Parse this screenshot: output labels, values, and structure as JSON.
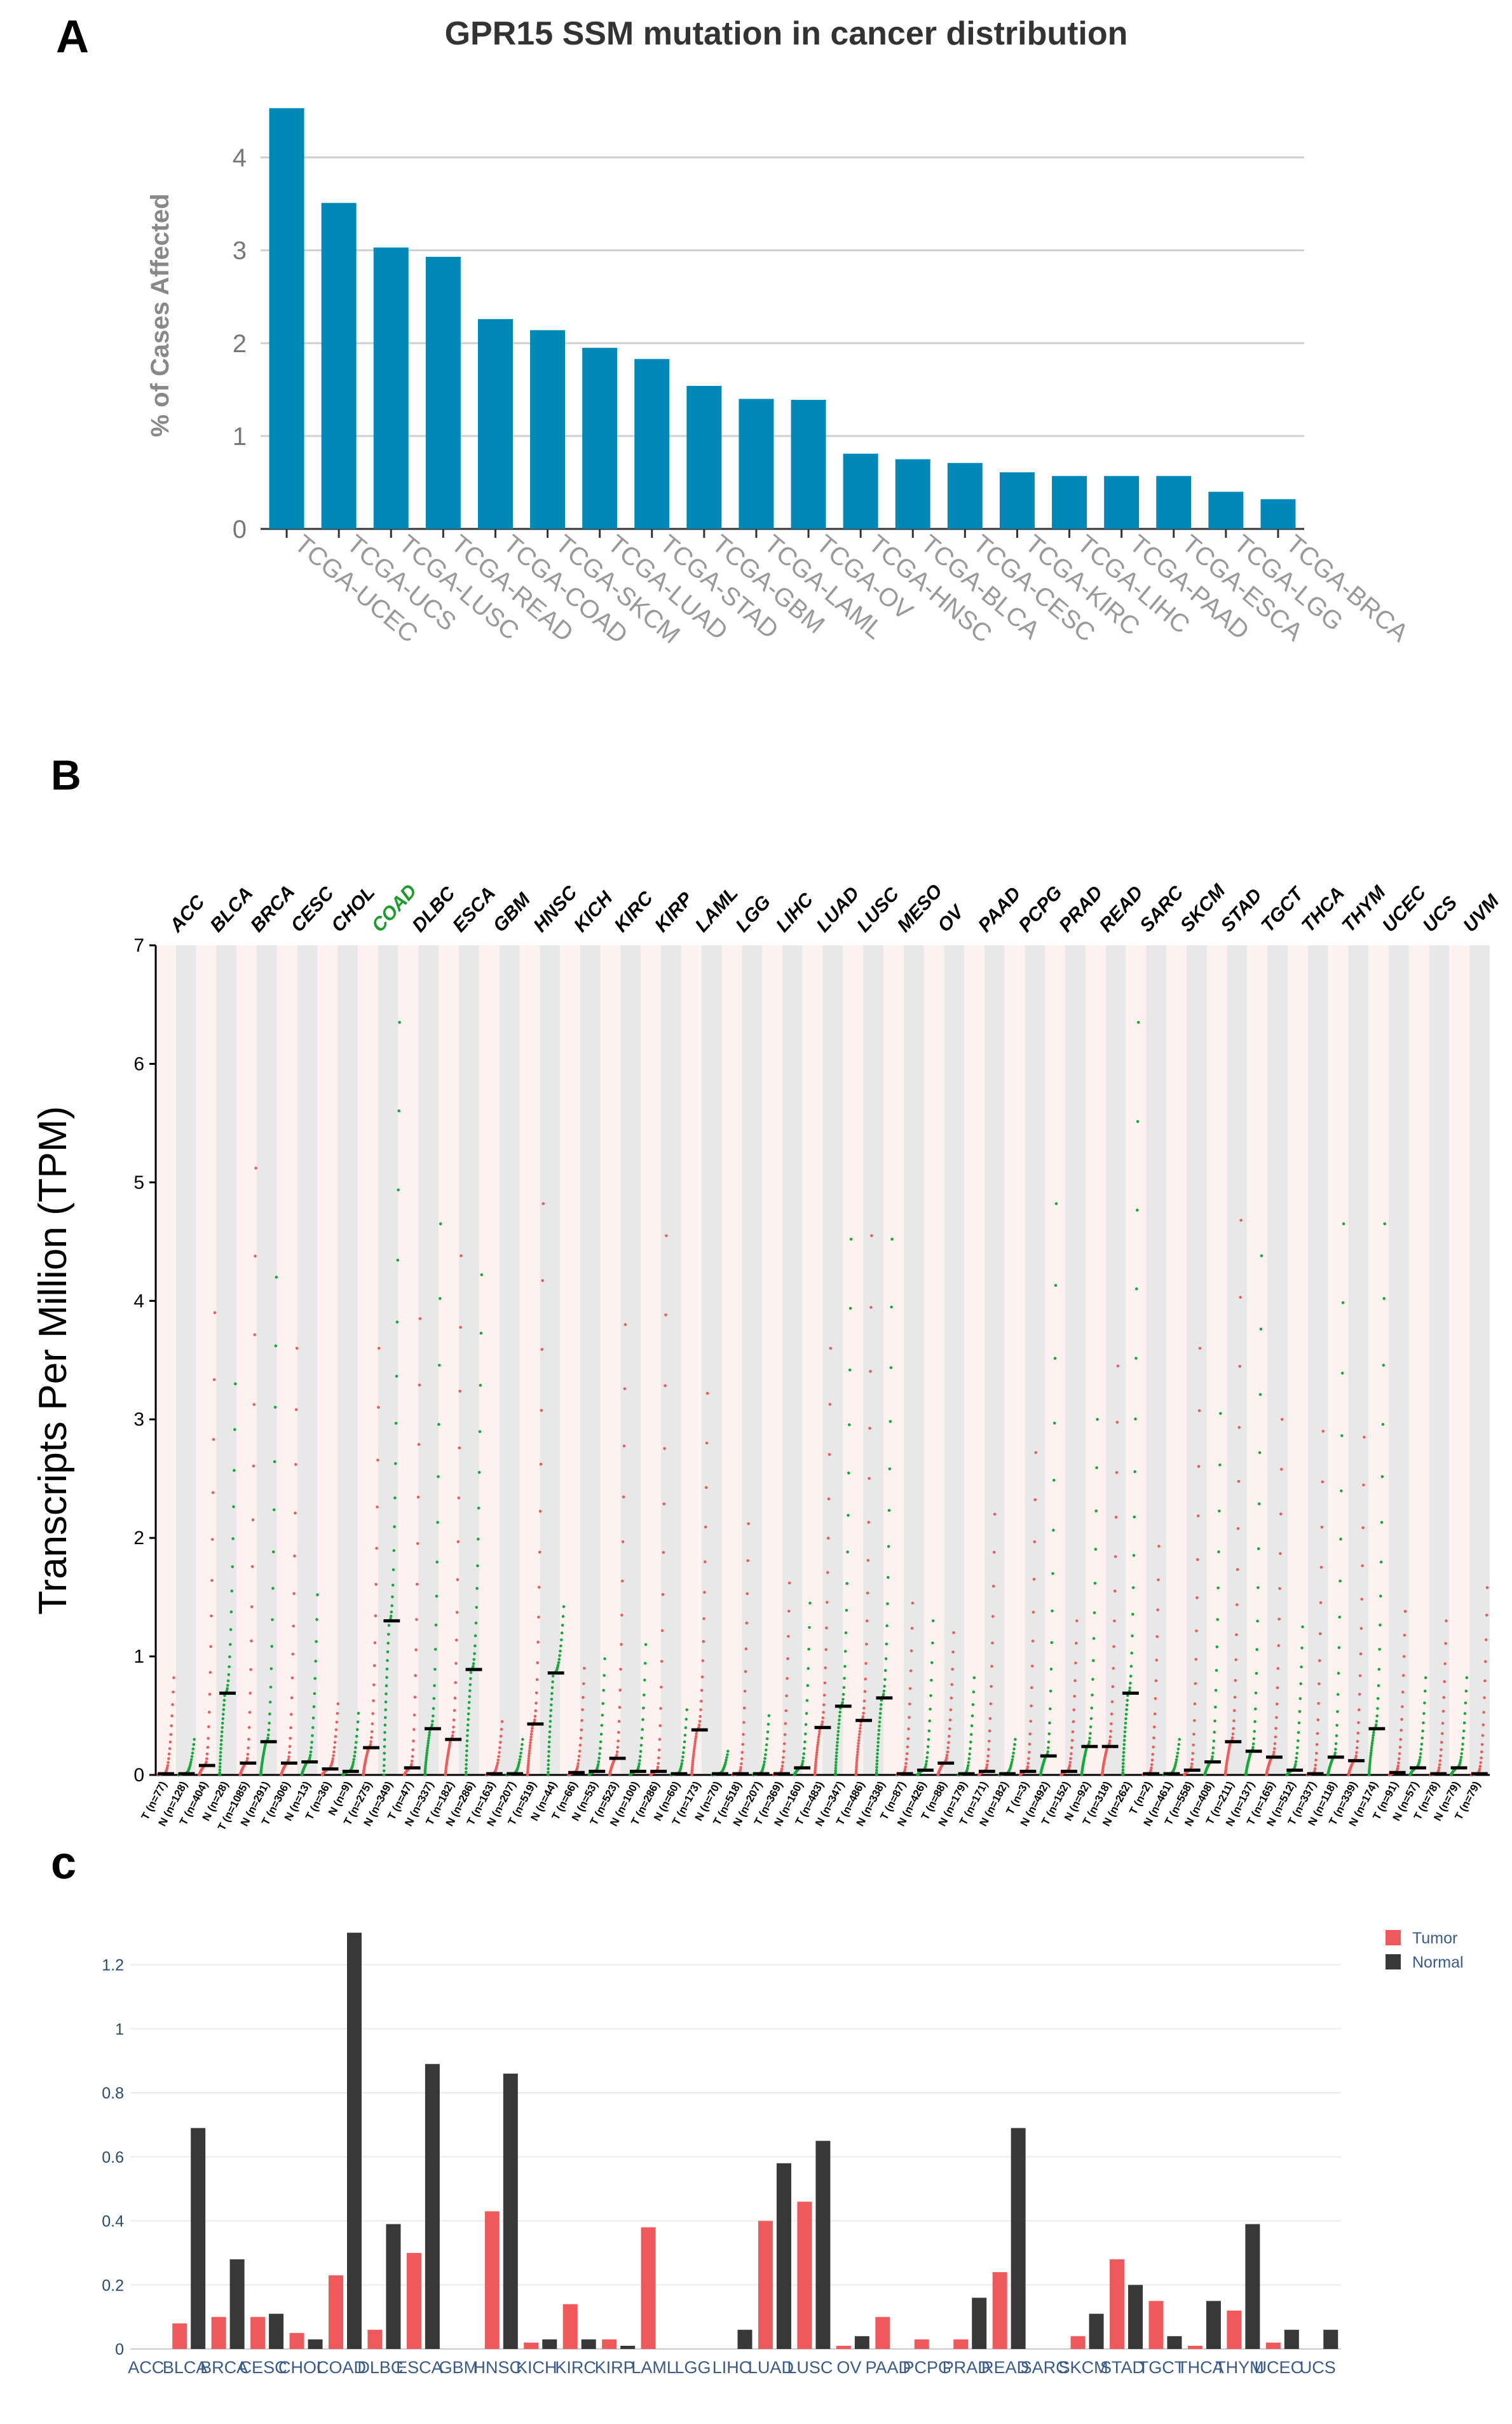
{
  "panel_labels": {
    "a": "A",
    "b": "B",
    "c": "c"
  },
  "chart_data": [
    {
      "id": "A",
      "type": "bar",
      "title": "GPR15 SSM mutation in cancer distribution",
      "ylabel": "% of Cases Affected",
      "xlabel": "",
      "ylim": [
        0,
        4.6
      ],
      "yticks": [
        0,
        1,
        2,
        3,
        4
      ],
      "grid": true,
      "bar_color": "#0088b8",
      "categories": [
        "TCGA-UCEC",
        "TCGA-UCS",
        "TCGA-LUSC",
        "TCGA-READ",
        "TCGA-COAD",
        "TCGA-SKCM",
        "TCGA-LUAD",
        "TCGA-STAD",
        "TCGA-GBM",
        "TCGA-LAML",
        "TCGA-OV",
        "TCGA-HNSC",
        "TCGA-BLCA",
        "TCGA-CESC",
        "TCGA-KIRC",
        "TCGA-LIHC",
        "TCGA-PAAD",
        "TCGA-ESCA",
        "TCGA-LGG",
        "TCGA-BRCA"
      ],
      "values": [
        4.53,
        3.51,
        3.03,
        2.93,
        2.26,
        2.14,
        1.95,
        1.83,
        1.54,
        1.4,
        1.39,
        0.81,
        0.75,
        0.71,
        0.61,
        0.57,
        0.57,
        0.57,
        0.4,
        0.32
      ]
    },
    {
      "id": "B",
      "type": "scatter",
      "ylabel": "Transcripts Per Million (TPM)",
      "ylim": [
        0,
        7
      ],
      "yticks": [
        0,
        1,
        2,
        3,
        4,
        5,
        6,
        7
      ],
      "tumor_color": "#ef5a5a",
      "normal_color": "#17a83a",
      "highlight_color": "#1a9b2a",
      "highlight": "COAD",
      "cancers": [
        "ACC",
        "BLCA",
        "BRCA",
        "CESC",
        "CHOL",
        "COAD",
        "DLBC",
        "ESCA",
        "GBM",
        "HNSC",
        "KICH",
        "KIRC",
        "KIRP",
        "LAML",
        "LGG",
        "LIHC",
        "LUAD",
        "LUSC",
        "MESO",
        "OV",
        "PAAD",
        "PCPG",
        "PRAD",
        "READ",
        "SARC",
        "SKCM",
        "STAD",
        "TGCT",
        "THCA",
        "THYM",
        "UCEC",
        "UCS",
        "UVM"
      ],
      "groups": [
        {
          "label": "T (n=77)",
          "kind": "T",
          "median": 0.01,
          "max": 0.82
        },
        {
          "label": "N (n=128)",
          "kind": "N",
          "median": 0.01,
          "max": 0.3
        },
        {
          "label": "T (n=404)",
          "kind": "T",
          "median": 0.08,
          "max": 3.9
        },
        {
          "label": "N (n=28)",
          "kind": "N",
          "median": 0.69,
          "max": 3.3
        },
        {
          "label": "T (n=1085)",
          "kind": "T",
          "median": 0.1,
          "max": 5.12
        },
        {
          "label": "N (n=291)",
          "kind": "N",
          "median": 0.28,
          "max": 4.2
        },
        {
          "label": "T (n=306)",
          "kind": "T",
          "median": 0.1,
          "max": 3.6
        },
        {
          "label": "N (n=13)",
          "kind": "N",
          "median": 0.11,
          "max": 1.52
        },
        {
          "label": "T (n=36)",
          "kind": "T",
          "median": 0.05,
          "max": 0.6
        },
        {
          "label": "N (n=9)",
          "kind": "N",
          "median": 0.03,
          "max": 0.52
        },
        {
          "label": "T (n=275)",
          "kind": "T",
          "median": 0.23,
          "max": 3.6
        },
        {
          "label": "N (n=349)",
          "kind": "N",
          "median": 1.3,
          "max": 6.35
        },
        {
          "label": "T (n=47)",
          "kind": "T",
          "median": 0.06,
          "max": 3.85
        },
        {
          "label": "N (n=337)",
          "kind": "N",
          "median": 0.39,
          "max": 4.65
        },
        {
          "label": "T (n=182)",
          "kind": "T",
          "median": 0.3,
          "max": 4.38
        },
        {
          "label": "N (n=286)",
          "kind": "N",
          "median": 0.89,
          "max": 4.22
        },
        {
          "label": "T (n=163)",
          "kind": "T",
          "median": 0.01,
          "max": 0.45
        },
        {
          "label": "N (n=207)",
          "kind": "N",
          "median": 0.01,
          "max": 0.3
        },
        {
          "label": "T (n=519)",
          "kind": "T",
          "median": 0.43,
          "max": 4.82
        },
        {
          "label": "N (n=44)",
          "kind": "N",
          "median": 0.86,
          "max": 1.42
        },
        {
          "label": "T (n=66)",
          "kind": "T",
          "median": 0.02,
          "max": 0.9
        },
        {
          "label": "N (n=53)",
          "kind": "N",
          "median": 0.03,
          "max": 0.98
        },
        {
          "label": "T (n=523)",
          "kind": "T",
          "median": 0.14,
          "max": 3.8
        },
        {
          "label": "N (n=100)",
          "kind": "N",
          "median": 0.03,
          "max": 1.1
        },
        {
          "label": "T (n=286)",
          "kind": "T",
          "median": 0.03,
          "max": 4.55
        },
        {
          "label": "N (n=60)",
          "kind": "N",
          "median": 0.01,
          "max": 0.55
        },
        {
          "label": "T (n=173)",
          "kind": "T",
          "median": 0.38,
          "max": 3.22
        },
        {
          "label": "N (n=70)",
          "kind": "N",
          "median": 0.01,
          "max": 0.2
        },
        {
          "label": "T (n=518)",
          "kind": "T",
          "median": 0.01,
          "max": 2.12
        },
        {
          "label": "N (n=207)",
          "kind": "N",
          "median": 0.01,
          "max": 0.5
        },
        {
          "label": "T (n=369)",
          "kind": "T",
          "median": 0.01,
          "max": 1.62
        },
        {
          "label": "N (n=160)",
          "kind": "N",
          "median": 0.06,
          "max": 1.45
        },
        {
          "label": "T (n=483)",
          "kind": "T",
          "median": 0.4,
          "max": 3.6
        },
        {
          "label": "N (n=347)",
          "kind": "N",
          "median": 0.58,
          "max": 4.52
        },
        {
          "label": "T (n=486)",
          "kind": "T",
          "median": 0.46,
          "max": 4.55
        },
        {
          "label": "N (n=338)",
          "kind": "N",
          "median": 0.65,
          "max": 4.52
        },
        {
          "label": "T (n=87)",
          "kind": "T",
          "median": 0.01,
          "max": 1.45
        },
        {
          "label": "N (n=426)",
          "kind": "N",
          "median": 0.04,
          "max": 1.3
        },
        {
          "label": "T (n=88)",
          "kind": "T",
          "median": 0.1,
          "max": 1.2
        },
        {
          "label": "N (n=179)",
          "kind": "N",
          "median": 0.01,
          "max": 0.82
        },
        {
          "label": "T (n=171)",
          "kind": "T",
          "median": 0.03,
          "max": 2.2
        },
        {
          "label": "N (n=182)",
          "kind": "N",
          "median": 0.01,
          "max": 0.3
        },
        {
          "label": "T (n=3)",
          "kind": "T",
          "median": 0.03,
          "max": 2.72
        },
        {
          "label": "N (n=492)",
          "kind": "N",
          "median": 0.16,
          "max": 4.82
        },
        {
          "label": "T (n=152)",
          "kind": "T",
          "median": 0.03,
          "max": 1.3
        },
        {
          "label": "N (n=92)",
          "kind": "N",
          "median": 0.24,
          "max": 3.0
        },
        {
          "label": "T (n=318)",
          "kind": "T",
          "median": 0.24,
          "max": 3.45
        },
        {
          "label": "N (n=262)",
          "kind": "N",
          "median": 0.69,
          "max": 6.35
        },
        {
          "label": "T (n=2)",
          "kind": "T",
          "median": 0.01,
          "max": 1.93
        },
        {
          "label": "N (n=461)",
          "kind": "N",
          "median": 0.01,
          "max": 0.3
        },
        {
          "label": "T (n=558)",
          "kind": "T",
          "median": 0.04,
          "max": 3.6
        },
        {
          "label": "N (n=408)",
          "kind": "N",
          "median": 0.11,
          "max": 3.05
        },
        {
          "label": "T (n=211)",
          "kind": "T",
          "median": 0.28,
          "max": 4.68
        },
        {
          "label": "N (n=137)",
          "kind": "N",
          "median": 0.2,
          "max": 4.38
        },
        {
          "label": "T (n=165)",
          "kind": "T",
          "median": 0.15,
          "max": 3.0
        },
        {
          "label": "N (n=512)",
          "kind": "N",
          "median": 0.04,
          "max": 1.25
        },
        {
          "label": "T (n=337)",
          "kind": "T",
          "median": 0.01,
          "max": 2.9
        },
        {
          "label": "N (n=118)",
          "kind": "N",
          "median": 0.15,
          "max": 4.65
        },
        {
          "label": "T (n=339)",
          "kind": "T",
          "median": 0.12,
          "max": 2.85
        },
        {
          "label": "N (n=174)",
          "kind": "N",
          "median": 0.39,
          "max": 4.65
        },
        {
          "label": "T (n=91)",
          "kind": "T",
          "median": 0.02,
          "max": 1.38
        },
        {
          "label": "N (n=57)",
          "kind": "N",
          "median": 0.06,
          "max": 0.82
        },
        {
          "label": "T (n=78)",
          "kind": "T",
          "median": 0.01,
          "max": 1.3
        },
        {
          "label": "N (n=79)",
          "kind": "N",
          "median": 0.06,
          "max": 0.82
        },
        {
          "label": "T (n=79)",
          "kind": "T",
          "median": 0.01,
          "max": 1.58
        }
      ]
    },
    {
      "id": "C",
      "type": "bar",
      "ylim": [
        0,
        1.35
      ],
      "yticks": [
        0,
        0.2,
        0.4,
        0.6,
        0.8,
        1,
        1.2
      ],
      "ytick_labels": [
        "0",
        "0.2",
        "0.4",
        "0.6",
        "0.8",
        "1",
        "1.2"
      ],
      "legend_position": "top-right",
      "categories": [
        "ACC",
        "BLCA",
        "BRCA",
        "CESC",
        "CHOL",
        "COAD",
        "DLBC",
        "ESCA",
        "GBM",
        "HNSC",
        "KICH",
        "KIRC",
        "KIRP",
        "LAML",
        "LGG",
        "LIHC",
        "LUAD",
        "LUSC",
        "OV",
        "PAAD",
        "PCPG",
        "PRAD",
        "READ",
        "SARC",
        "SKCM",
        "STAD",
        "TGCT",
        "THCA",
        "THYM",
        "UCEC",
        "UCS"
      ],
      "series": [
        {
          "name": "Tumor",
          "color": "#f0595b",
          "values": [
            0,
            0.08,
            0.1,
            0.1,
            0.05,
            0.23,
            0.06,
            0.3,
            0,
            0.43,
            0.02,
            0.14,
            0.03,
            0.38,
            0,
            0,
            0.4,
            0.46,
            0.01,
            0.1,
            0.03,
            0.03,
            0.24,
            0,
            0.04,
            0.28,
            0.15,
            0.01,
            0.12,
            0.02,
            0
          ]
        },
        {
          "name": "Normal",
          "color": "#383838",
          "values": [
            0,
            0.69,
            0.28,
            0.11,
            0.03,
            1.3,
            0.39,
            0.89,
            0,
            0.86,
            0.03,
            0.03,
            0.01,
            0,
            0,
            0.06,
            0.58,
            0.65,
            0.04,
            0,
            0,
            0.16,
            0.69,
            0,
            0.11,
            0.2,
            0.04,
            0.15,
            0.39,
            0.06,
            0.06
          ]
        }
      ]
    }
  ]
}
